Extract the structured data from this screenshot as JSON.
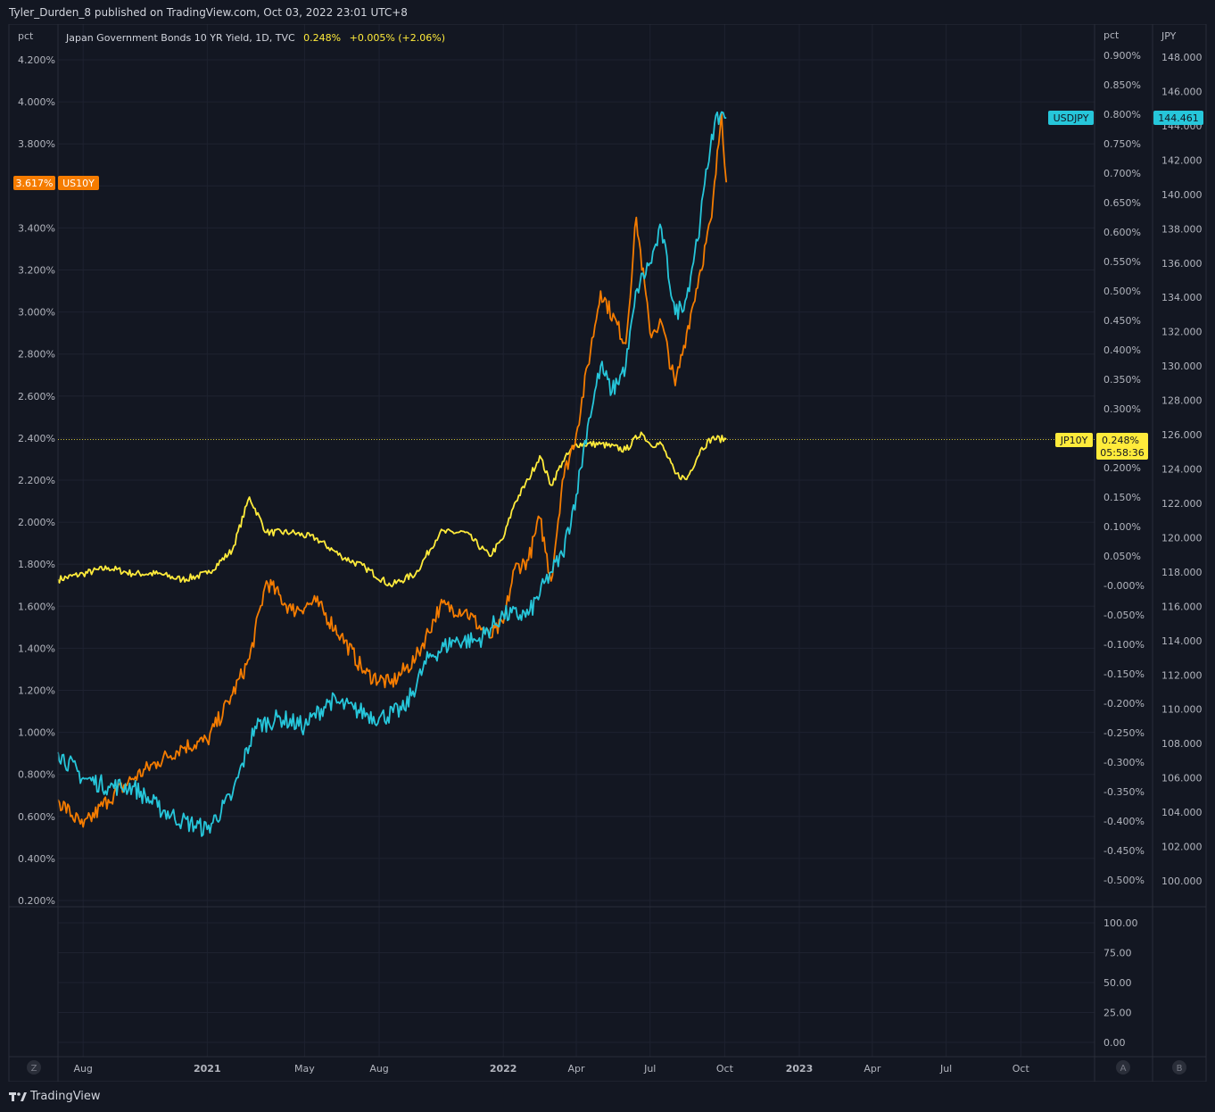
{
  "header": {
    "published": "Tyler_Durden_8 published on TradingView.com, Oct 03, 2022 23:01 UTC+8"
  },
  "legend": {
    "title": "Japan Government Bonds 10 YR Yield, 1D, TVC",
    "last": "0.248%",
    "change": "+0.005% (+2.06%)"
  },
  "scales": {
    "left_unit": "pct",
    "left_ticks": [
      "4.200%",
      "4.000%",
      "3.800%",
      "3.600%",
      "3.400%",
      "3.200%",
      "3.000%",
      "2.800%",
      "2.600%",
      "2.400%",
      "2.200%",
      "2.000%",
      "1.800%",
      "1.600%",
      "1.400%",
      "1.200%",
      "1.000%",
      "0.800%",
      "0.600%",
      "0.400%",
      "0.200%"
    ],
    "mid_unit": "pct",
    "mid_ticks": [
      "0.900%",
      "0.850%",
      "0.800%",
      "0.750%",
      "0.700%",
      "0.650%",
      "0.600%",
      "0.550%",
      "0.500%",
      "0.450%",
      "0.400%",
      "0.350%",
      "0.300%",
      "0.250%",
      "0.200%",
      "0.150%",
      "0.100%",
      "0.050%",
      "-0.000%",
      "-0.050%",
      "-0.100%",
      "-0.150%",
      "-0.200%",
      "-0.250%",
      "-0.300%",
      "-0.350%",
      "-0.400%",
      "-0.450%",
      "-0.500%"
    ],
    "right_unit": "JPY",
    "right_ticks": [
      "148.000",
      "146.000",
      "144.000",
      "142.000",
      "140.000",
      "138.000",
      "136.000",
      "134.000",
      "132.000",
      "130.000",
      "128.000",
      "126.000",
      "124.000",
      "122.000",
      "120.000",
      "118.000",
      "116.000",
      "114.000",
      "112.000",
      "110.000",
      "108.000",
      "106.000",
      "104.000",
      "102.000",
      "100.000"
    ],
    "lower_ticks": [
      "100.00",
      "75.00",
      "50.00",
      "25.00",
      "0.00"
    ],
    "time_labels": [
      "Aug",
      "2021",
      "May",
      "Aug",
      "2022",
      "Apr",
      "Jul",
      "Oct",
      "2023",
      "Apr",
      "Jul",
      "Oct"
    ],
    "bottom_buttons": [
      "Z",
      "A",
      "B"
    ]
  },
  "badges": {
    "us10y_value": "3.617%",
    "us10y_name": "US10Y",
    "usdjpy_name": "USDJPY",
    "usdjpy_value": "144.461",
    "jp10y_name": "JP10Y",
    "jp10y_value": "0.248%",
    "countdown": "05:58:36"
  },
  "footer": {
    "brand": "TradingView"
  },
  "colors": {
    "background": "#131722",
    "grid": "#1e2230",
    "jp10y": "#ffeb3b",
    "us10y": "#f57c00",
    "usdjpy": "#26c6da"
  },
  "chart_data": {
    "type": "line",
    "x_range": [
      "2020-07-01",
      "2022-10-03"
    ],
    "series": [
      {
        "name": "JP10Y",
        "axis": "pct (middle scale)",
        "color": "#ffeb3b",
        "x": [
          "2020-07-01",
          "2020-08-01",
          "2020-09-01",
          "2020-10-01",
          "2020-11-01",
          "2020-12-01",
          "2021-01-01",
          "2021-02-01",
          "2021-02-22",
          "2021-03-15",
          "2021-04-15",
          "2021-05-15",
          "2021-06-15",
          "2021-07-15",
          "2021-08-15",
          "2021-09-15",
          "2021-10-15",
          "2021-11-15",
          "2021-12-15",
          "2022-01-01",
          "2022-01-15",
          "2022-02-01",
          "2022-02-15",
          "2022-03-01",
          "2022-03-15",
          "2022-04-01",
          "2022-05-01",
          "2022-06-01",
          "2022-06-20",
          "2022-07-01",
          "2022-07-15",
          "2022-08-01",
          "2022-08-15",
          "2022-09-01",
          "2022-09-15",
          "2022-10-03"
        ],
        "y": [
          0.01,
          0.02,
          0.03,
          0.02,
          0.02,
          0.01,
          0.02,
          0.06,
          0.15,
          0.09,
          0.09,
          0.08,
          0.05,
          0.03,
          0.0,
          0.02,
          0.09,
          0.09,
          0.05,
          0.08,
          0.14,
          0.18,
          0.22,
          0.17,
          0.21,
          0.24,
          0.24,
          0.23,
          0.26,
          0.24,
          0.24,
          0.19,
          0.18,
          0.23,
          0.25,
          0.248
        ]
      },
      {
        "name": "US10Y",
        "axis": "pct (left scale)",
        "color": "#f57c00",
        "x": [
          "2020-07-01",
          "2020-08-01",
          "2020-09-01",
          "2020-10-01",
          "2020-11-01",
          "2020-12-01",
          "2021-01-01",
          "2021-02-01",
          "2021-02-22",
          "2021-03-15",
          "2021-04-15",
          "2021-05-15",
          "2021-06-15",
          "2021-07-15",
          "2021-08-15",
          "2021-09-15",
          "2021-10-15",
          "2021-11-15",
          "2021-12-15",
          "2022-01-01",
          "2022-01-15",
          "2022-02-01",
          "2022-02-15",
          "2022-03-01",
          "2022-03-15",
          "2022-04-01",
          "2022-05-01",
          "2022-06-01",
          "2022-06-14",
          "2022-07-01",
          "2022-07-15",
          "2022-08-01",
          "2022-08-15",
          "2022-09-01",
          "2022-09-15",
          "2022-09-27",
          "2022-10-03"
        ],
        "y": [
          0.68,
          0.55,
          0.68,
          0.78,
          0.86,
          0.93,
          0.96,
          1.18,
          1.35,
          1.72,
          1.58,
          1.62,
          1.46,
          1.28,
          1.23,
          1.35,
          1.6,
          1.58,
          1.45,
          1.52,
          1.78,
          1.82,
          2.02,
          1.72,
          2.2,
          2.42,
          3.1,
          2.85,
          3.45,
          2.9,
          2.95,
          2.65,
          2.9,
          3.2,
          3.45,
          3.95,
          3.617
        ]
      },
      {
        "name": "USDJPY",
        "axis": "JPY (right scale)",
        "color": "#26c6da",
        "x": [
          "2020-07-01",
          "2020-08-01",
          "2020-09-01",
          "2020-10-01",
          "2020-11-01",
          "2020-12-01",
          "2021-01-01",
          "2021-02-01",
          "2021-03-01",
          "2021-04-01",
          "2021-05-01",
          "2021-06-01",
          "2021-07-01",
          "2021-08-01",
          "2021-09-01",
          "2021-10-01",
          "2021-11-01",
          "2021-12-01",
          "2022-01-01",
          "2022-02-01",
          "2022-03-01",
          "2022-03-15",
          "2022-04-01",
          "2022-04-15",
          "2022-05-01",
          "2022-05-15",
          "2022-06-01",
          "2022-06-15",
          "2022-07-01",
          "2022-07-15",
          "2022-08-01",
          "2022-08-15",
          "2022-09-01",
          "2022-09-15",
          "2022-09-27",
          "2022-10-03"
        ],
        "y": [
          107.5,
          106.0,
          105.5,
          105.5,
          104.3,
          103.5,
          103.0,
          105.0,
          109.0,
          109.5,
          109.0,
          110.5,
          110.0,
          109.5,
          110.0,
          113.0,
          114.0,
          114.0,
          115.5,
          115.5,
          118.0,
          119.0,
          122.5,
          126.5,
          130.0,
          128.5,
          130.0,
          134.5,
          136.0,
          138.0,
          133.0,
          134.0,
          138.5,
          143.5,
          144.8,
          144.461
        ]
      }
    ]
  }
}
